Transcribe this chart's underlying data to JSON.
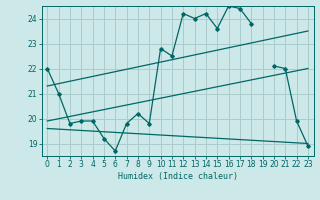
{
  "title": "",
  "xlabel": "Humidex (Indice chaleur)",
  "bg_color": "#cce8e8",
  "grid_color": "#aacccc",
  "line_color": "#006666",
  "xlim": [
    -0.5,
    23.5
  ],
  "ylim": [
    18.5,
    24.5
  ],
  "yticks": [
    19,
    20,
    21,
    22,
    23,
    24
  ],
  "xticks": [
    0,
    1,
    2,
    3,
    4,
    5,
    6,
    7,
    8,
    9,
    10,
    11,
    12,
    13,
    14,
    15,
    16,
    17,
    18,
    19,
    20,
    21,
    22,
    23
  ],
  "line1_x": [
    0,
    1,
    2,
    3,
    4,
    5,
    6,
    7,
    8,
    9,
    10,
    11,
    12,
    13,
    14,
    15,
    16,
    17,
    18,
    20,
    21,
    22,
    23
  ],
  "line1_y": [
    22.0,
    21.0,
    19.8,
    19.9,
    19.9,
    19.2,
    18.7,
    19.8,
    20.2,
    19.8,
    22.8,
    22.5,
    24.2,
    24.0,
    24.2,
    23.6,
    24.5,
    24.4,
    23.8,
    22.1,
    22.0,
    19.9,
    18.9
  ],
  "line3_x": [
    0,
    23
  ],
  "line3_y": [
    21.3,
    23.5
  ],
  "line4_x": [
    0,
    23
  ],
  "line4_y": [
    19.9,
    22.0
  ],
  "line5_x": [
    0,
    23
  ],
  "line5_y": [
    19.6,
    19.0
  ]
}
